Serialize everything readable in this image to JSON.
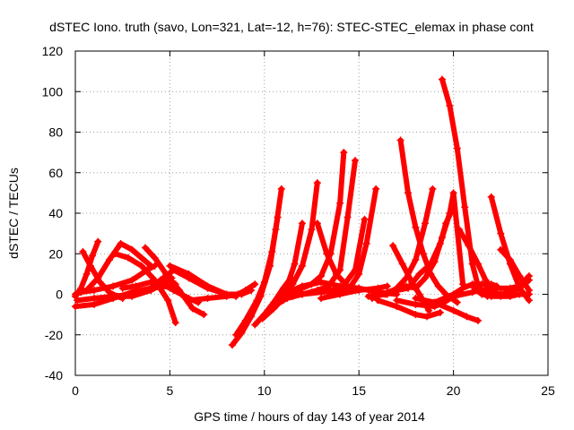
{
  "chart_data": {
    "type": "line",
    "title": "dSTEC Iono. truth (savo, Lon=321, Lat=-12, h=76): STEC-STEC_elemax in phase cont",
    "xlabel": "GPS time / hours of day 143 of year 2014",
    "ylabel": "dSTEC  / TECUs",
    "xlim": [
      0,
      25
    ],
    "ylim": [
      -40,
      120
    ],
    "x_ticks": [
      0,
      5,
      10,
      15,
      20,
      25
    ],
    "y_ticks": [
      -40,
      -20,
      0,
      20,
      40,
      60,
      80,
      100,
      120
    ],
    "grid": true,
    "marker": "plus",
    "color": "#ff0000",
    "series": [
      {
        "x": [
          0.0,
          0.3,
          0.6,
          0.9,
          1.2
        ],
        "y": [
          -1,
          3,
          10,
          19,
          26
        ]
      },
      {
        "x": [
          0.4,
          0.8,
          1.3,
          1.8,
          2.2,
          2.5
        ],
        "y": [
          21,
          14,
          6,
          1,
          -1,
          -2
        ]
      },
      {
        "x": [
          0.0,
          0.6,
          1.2,
          1.8,
          2.4,
          3.0,
          3.5,
          4.0
        ],
        "y": [
          0,
          2,
          8,
          17,
          25,
          22,
          18,
          14
        ]
      },
      {
        "x": [
          0.0,
          1.0,
          2.0,
          3.0,
          4.0,
          5.0,
          5.3
        ],
        "y": [
          -6,
          -5,
          -2,
          1,
          3,
          4,
          5
        ]
      },
      {
        "x": [
          0.1,
          1.0,
          2.0,
          3.0,
          4.0,
          4.8,
          5.1
        ],
        "y": [
          -3,
          -2,
          -1,
          -1,
          2,
          6,
          8
        ]
      },
      {
        "x": [
          0.3,
          1.0,
          2.0,
          3.0,
          3.8,
          4.2
        ],
        "y": [
          1,
          2,
          4,
          7,
          12,
          14
        ]
      },
      {
        "x": [
          2.1,
          2.8,
          3.5,
          4.2,
          4.9,
          5.3
        ],
        "y": [
          20,
          18,
          14,
          7,
          -3,
          -14
        ]
      },
      {
        "x": [
          2.5,
          3.2,
          4.0,
          4.6,
          5.2,
          5.6,
          6.0,
          6.5
        ],
        "y": [
          3,
          4,
          6,
          5,
          2,
          0,
          -2,
          -4
        ]
      },
      {
        "x": [
          3.7,
          4.2,
          4.8,
          5.5,
          6.2,
          6.8
        ],
        "y": [
          23,
          18,
          10,
          2,
          -7,
          -10
        ]
      },
      {
        "x": [
          2.0,
          3.0,
          4.0,
          4.5,
          5.2,
          6.0,
          7.0,
          8.0,
          8.5
        ],
        "y": [
          -1,
          0,
          3,
          7,
          12,
          8,
          3,
          0,
          -1
        ]
      },
      {
        "x": [
          5.0,
          6.0,
          7.0,
          8.0,
          8.8,
          9.3
        ],
        "y": [
          14,
          10,
          4,
          0,
          0,
          2
        ]
      },
      {
        "x": [
          6.0,
          7.0,
          8.0,
          8.6,
          9.0,
          9.5
        ],
        "y": [
          -3,
          -2,
          -1,
          0,
          2,
          5
        ]
      },
      {
        "x": [
          8.3,
          8.8,
          9.3,
          9.8,
          10.3,
          10.6,
          10.9
        ],
        "y": [
          -25,
          -19,
          -11,
          -1,
          14,
          32,
          52
        ]
      },
      {
        "x": [
          8.5,
          9.0,
          9.6,
          10.0,
          10.4,
          10.7
        ],
        "y": [
          -20,
          -13,
          -3,
          6,
          21,
          38
        ]
      },
      {
        "x": [
          9.5,
          10.0,
          10.5,
          11.0,
          11.4
        ],
        "y": [
          -15,
          -10,
          -4,
          3,
          8
        ]
      },
      {
        "x": [
          9.9,
          10.5,
          11.0,
          11.5,
          12.0,
          12.5,
          12.8
        ],
        "y": [
          -12,
          -7,
          -2,
          5,
          14,
          32,
          55
        ]
      },
      {
        "x": [
          10.0,
          10.6,
          11.2,
          11.6,
          12.0
        ],
        "y": [
          -10,
          -3,
          4,
          15,
          35
        ]
      },
      {
        "x": [
          10.5,
          11.0,
          11.5,
          12.0,
          12.5,
          13.0,
          13.5,
          14.0,
          14.2
        ],
        "y": [
          -6,
          -3,
          0,
          3,
          5,
          9,
          20,
          45,
          70
        ]
      },
      {
        "x": [
          11.2,
          12.0,
          12.8,
          13.4,
          14.0,
          14.4,
          14.8
        ],
        "y": [
          -2,
          0,
          2,
          4,
          12,
          38,
          66
        ]
      },
      {
        "x": [
          11.5,
          12.5,
          13.5,
          14.5,
          15.0,
          15.4,
          15.9
        ],
        "y": [
          -1,
          1,
          2,
          3,
          10,
          25,
          52
        ]
      },
      {
        "x": [
          12.0,
          13.0,
          14.0,
          14.8,
          15.3
        ],
        "y": [
          0,
          1,
          2,
          12,
          37
        ]
      },
      {
        "x": [
          12.8,
          13.3,
          13.8,
          14.3
        ],
        "y": [
          35,
          20,
          10,
          5
        ]
      },
      {
        "x": [
          11.0,
          12.0,
          13.0,
          14.0,
          15.0,
          16.0,
          17.0
        ],
        "y": [
          0,
          4,
          6,
          4,
          3,
          1,
          0
        ]
      },
      {
        "x": [
          13.0,
          14.0,
          15.0,
          16.0,
          16.5
        ],
        "y": [
          -2,
          0,
          2,
          3,
          4
        ]
      },
      {
        "x": [
          17.2,
          17.6,
          18.0,
          18.4,
          18.8,
          19.2,
          19.6,
          20.2
        ],
        "y": [
          76,
          50,
          33,
          20,
          10,
          4,
          0,
          -4
        ]
      },
      {
        "x": [
          16.8,
          17.3,
          17.8,
          18.2,
          18.7
        ],
        "y": [
          24,
          15,
          6,
          0,
          -8
        ]
      },
      {
        "x": [
          15.5,
          16.5,
          17.0,
          17.5,
          18.0,
          18.5,
          18.9
        ],
        "y": [
          -1,
          0,
          3,
          8,
          17,
          35,
          52
        ]
      },
      {
        "x": [
          16.0,
          17.0,
          18.0,
          18.6,
          19.3
        ],
        "y": [
          -3,
          -6,
          -10,
          -11,
          -9
        ]
      },
      {
        "x": [
          15.7,
          16.5,
          17.5,
          18.0,
          18.5,
          19.0,
          19.4,
          19.8,
          20.0,
          20.5
        ],
        "y": [
          -2,
          1,
          4,
          3,
          8,
          16,
          28,
          40,
          50,
          5
        ]
      },
      {
        "x": [
          16.4,
          17.0,
          17.6,
          18.2,
          18.8,
          19.3,
          19.6,
          19.9
        ],
        "y": [
          0,
          2,
          3,
          10,
          15,
          25,
          35,
          41
        ]
      },
      {
        "x": [
          19.4,
          19.8,
          20.2,
          20.6,
          21.0,
          21.3,
          21.8
        ],
        "y": [
          106,
          93,
          72,
          43,
          15,
          4,
          -1
        ]
      },
      {
        "x": [
          20.3,
          20.8,
          21.3,
          21.7,
          22.3
        ],
        "y": [
          32,
          24,
          15,
          7,
          0
        ]
      },
      {
        "x": [
          22.0,
          22.5,
          23.0,
          23.5,
          24.0
        ],
        "y": [
          48,
          30,
          15,
          3,
          -3
        ]
      },
      {
        "x": [
          22.5,
          23.0,
          23.5,
          24.0
        ],
        "y": [
          22,
          17,
          9,
          2
        ]
      },
      {
        "x": [
          18.0,
          19.0,
          20.0,
          20.7,
          21.3
        ],
        "y": [
          -2,
          -4,
          -8,
          -11,
          -13
        ]
      },
      {
        "x": [
          19.0,
          20.0,
          20.5,
          21.0,
          21.5,
          22.0,
          22.3
        ],
        "y": [
          -4,
          0,
          3,
          5,
          5,
          5,
          4
        ]
      },
      {
        "x": [
          17.0,
          18.0,
          19.0,
          19.5,
          20.0,
          21.0,
          22.0,
          23.0,
          23.5,
          24.0
        ],
        "y": [
          -3,
          -5,
          -6,
          -4,
          -1,
          1,
          3,
          3,
          4,
          9
        ]
      },
      {
        "x": [
          21.0,
          21.5,
          22.0,
          22.5,
          23.0,
          23.5,
          24.0
        ],
        "y": [
          4,
          0,
          -1,
          -1,
          -1,
          0,
          0
        ]
      },
      {
        "x": [
          21.5,
          22.5,
          23.0,
          23.5,
          24.0
        ],
        "y": [
          2,
          0,
          1,
          3,
          7
        ]
      }
    ]
  }
}
